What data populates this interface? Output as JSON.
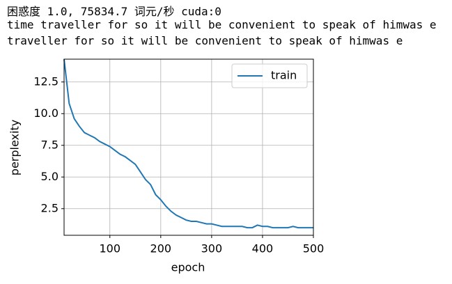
{
  "output_lines": [
    "困惑度 1.0, 75834.7 词元/秒 cuda:0",
    "time traveller for so it will be convenient to speak of himwas e",
    "traveller for so it will be convenient to speak of himwas e"
  ],
  "chart_data": {
    "type": "line",
    "x_label": "epoch",
    "y_label": "perplexity",
    "x": [
      10,
      20,
      30,
      40,
      50,
      60,
      70,
      80,
      90,
      100,
      110,
      120,
      130,
      140,
      150,
      160,
      170,
      180,
      190,
      200,
      210,
      220,
      230,
      240,
      250,
      260,
      270,
      280,
      290,
      300,
      310,
      320,
      330,
      340,
      350,
      360,
      370,
      380,
      390,
      400,
      410,
      420,
      430,
      440,
      450,
      460,
      470,
      480,
      490,
      500
    ],
    "series": [
      {
        "name": "train",
        "color": "#1f77b4",
        "values": [
          14.3,
          10.8,
          9.6,
          9.0,
          8.5,
          8.3,
          8.1,
          7.8,
          7.6,
          7.4,
          7.1,
          6.8,
          6.6,
          6.3,
          6.0,
          5.4,
          4.8,
          4.4,
          3.6,
          3.2,
          2.7,
          2.3,
          2.0,
          1.8,
          1.6,
          1.5,
          1.5,
          1.4,
          1.3,
          1.3,
          1.2,
          1.1,
          1.1,
          1.1,
          1.1,
          1.1,
          1.0,
          1.0,
          1.2,
          1.1,
          1.1,
          1.0,
          1.0,
          1.0,
          1.0,
          1.1,
          1.0,
          1.0,
          1.0,
          1.0
        ]
      }
    ],
    "xlim": [
      10,
      500
    ],
    "xticks": [
      100,
      200,
      300,
      400,
      500
    ],
    "ylim": [
      0.4,
      14.3
    ],
    "yticks": [
      2.5,
      {
        "value": 5.0,
        "label": "5.0"
      },
      7.5,
      {
        "value": 10.0,
        "label": "10.0"
      },
      12.5
    ],
    "grid": true,
    "legend": "upper right"
  }
}
